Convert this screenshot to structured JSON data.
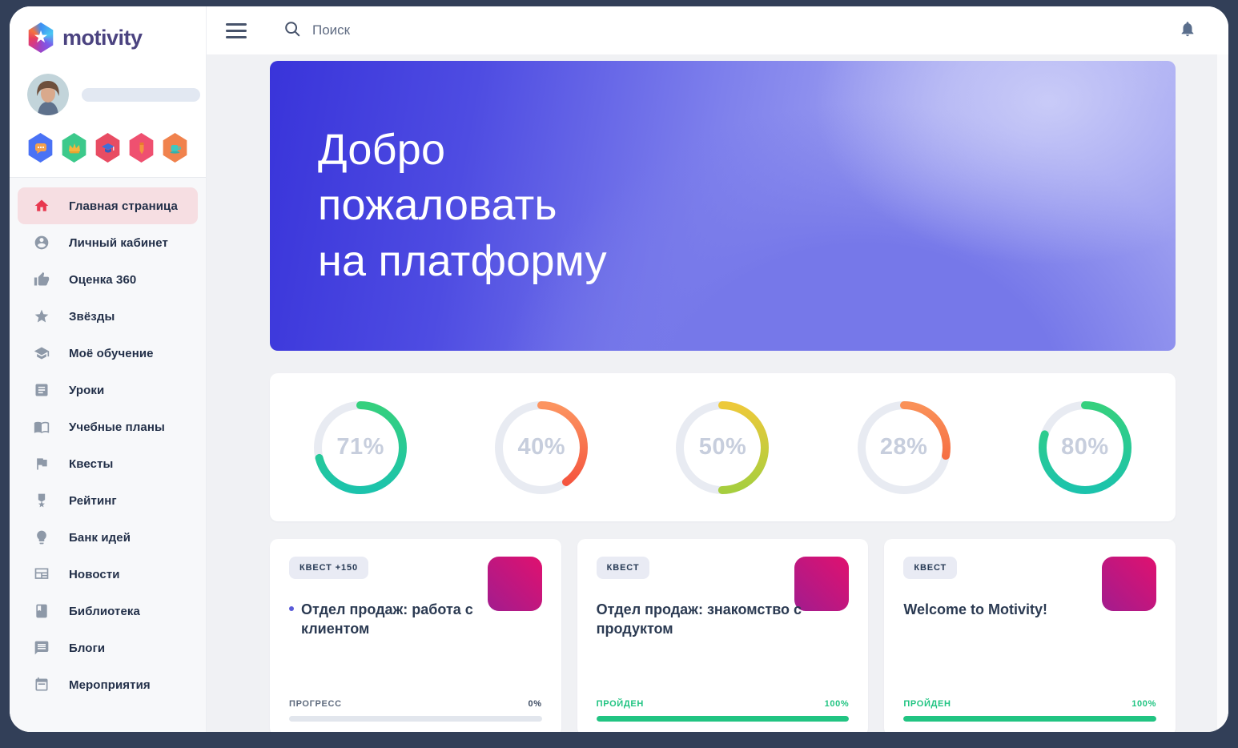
{
  "app": {
    "name": "motivity",
    "logo_icon": "hexagon-star-icon"
  },
  "theme": {
    "frame_bg": "#323f58",
    "green": "#21c482",
    "active_pink_bg": "#f6dee2",
    "active_red": "#e8384f",
    "badge_bg": "#e9ebf4",
    "text_dark": "#2b3a52",
    "text_gray": "#8e99a8",
    "ring_track": "#e8ebf2",
    "ring_text": "#c7cedd",
    "thumb_a": "#a21c8e",
    "thumb_b": "#e0116f",
    "main_bg": "#f0f1f4"
  },
  "topbar": {
    "search_placeholder": "Поиск",
    "icons": [
      "hamburger-icon",
      "search-icon",
      "bell-icon"
    ]
  },
  "sidebar": {
    "achievement_badges": [
      "chat-badge",
      "crown-badge",
      "graduation-badge",
      "pencil-badge",
      "cup-badge"
    ],
    "menu": [
      {
        "label": "Главная страница",
        "icon": "home-icon",
        "active": true
      },
      {
        "label": "Личный кабинет",
        "icon": "person-icon",
        "active": false
      },
      {
        "label": "Оценка 360",
        "icon": "thumb-up-icon",
        "active": false
      },
      {
        "label": "Звёзды",
        "icon": "star-icon",
        "active": false
      },
      {
        "label": "Моё обучение",
        "icon": "graduation-cap-icon",
        "active": false
      },
      {
        "label": "Уроки",
        "icon": "article-icon",
        "active": false
      },
      {
        "label": "Учебные планы",
        "icon": "open-book-icon",
        "active": false
      },
      {
        "label": "Квесты",
        "icon": "flag-icon",
        "active": false
      },
      {
        "label": "Рейтинг",
        "icon": "medal-icon",
        "active": false
      },
      {
        "label": "Банк идей",
        "icon": "lightbulb-icon",
        "active": false
      },
      {
        "label": "Новости",
        "icon": "newspaper-icon",
        "active": false
      },
      {
        "label": "Библиотека",
        "icon": "book-icon",
        "active": false
      },
      {
        "label": "Блоги",
        "icon": "blog-icon",
        "active": false
      },
      {
        "label": "Мероприятия",
        "icon": "calendar-icon",
        "active": false
      }
    ]
  },
  "hero": {
    "line1": "Добро",
    "line2": "пожаловать",
    "line3": "на платформу"
  },
  "progress_overview": {
    "rings": [
      {
        "value": 71,
        "label": "71%",
        "color_start": "#35d07e",
        "color_end": "#1cc3ac"
      },
      {
        "value": 40,
        "label": "40%",
        "color_start": "#fc9460",
        "color_end": "#f4503c"
      },
      {
        "value": 50,
        "label": "50%",
        "color_start": "#edc93a",
        "color_end": "#a6ce3e"
      },
      {
        "value": 28,
        "label": "28%",
        "color_start": "#fa9158",
        "color_end": "#f35a38"
      },
      {
        "value": 80,
        "label": "80%",
        "color_start": "#35d07e",
        "color_end": "#1cc3ac"
      }
    ]
  },
  "quests": [
    {
      "badge": "КВЕСТ +150",
      "title": "Отдел продаж: работа с клиентом",
      "status": "ПРОГРЕСС",
      "pct_label": "0%",
      "progress": 0,
      "done": false
    },
    {
      "badge": "КВЕСТ",
      "title": "Отдел продаж: знакомство с продуктом",
      "status": "ПРОЙДЕН",
      "pct_label": "100%",
      "progress": 100,
      "done": true
    },
    {
      "badge": "КВЕСТ",
      "title": "Welcome to Motivity!",
      "status": "ПРОЙДЕН",
      "pct_label": "100%",
      "progress": 100,
      "done": true
    }
  ]
}
